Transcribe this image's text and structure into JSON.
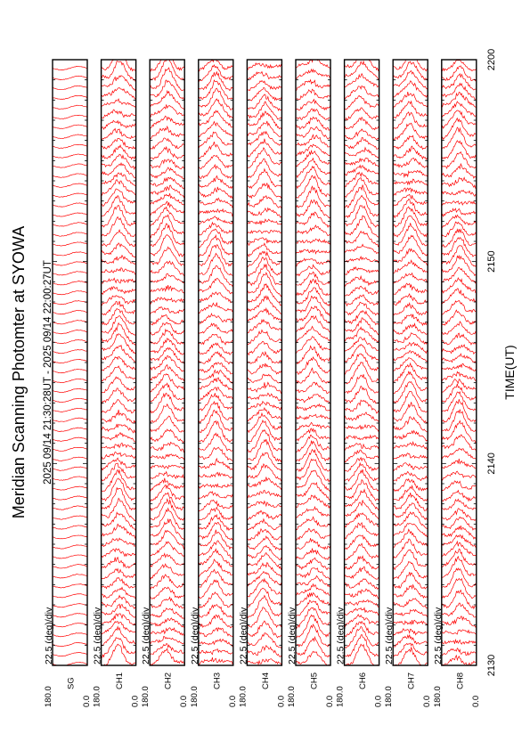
{
  "chart_data": {
    "type": "line",
    "title": "Meridian Scanning Photomter at SYOWA",
    "subtitle": "2025 09/14 21:30:28UT - 2025 09/14 22:00:27UT",
    "xlabel": "TIME(UT)",
    "x_ticks": [
      {
        "label": "2130",
        "value": 0
      },
      {
        "label": "2140",
        "value": 10
      },
      {
        "label": "2150",
        "value": 20
      },
      {
        "label": "2200",
        "value": 30
      }
    ],
    "x_range_minutes": [
      0,
      30
    ],
    "y_tick_labels": [
      "180.0",
      "0.0"
    ],
    "scale_label": "22.5 (deg)/div",
    "line_color": "#ff0000",
    "grid": false,
    "panels": [
      {
        "channel": "SG"
      },
      {
        "channel": "CH1"
      },
      {
        "channel": "CH2"
      },
      {
        "channel": "CH3"
      },
      {
        "channel": "CH4"
      },
      {
        "channel": "CH5"
      },
      {
        "channel": "CH6"
      },
      {
        "channel": "CH7"
      },
      {
        "channel": "CH8"
      }
    ]
  }
}
